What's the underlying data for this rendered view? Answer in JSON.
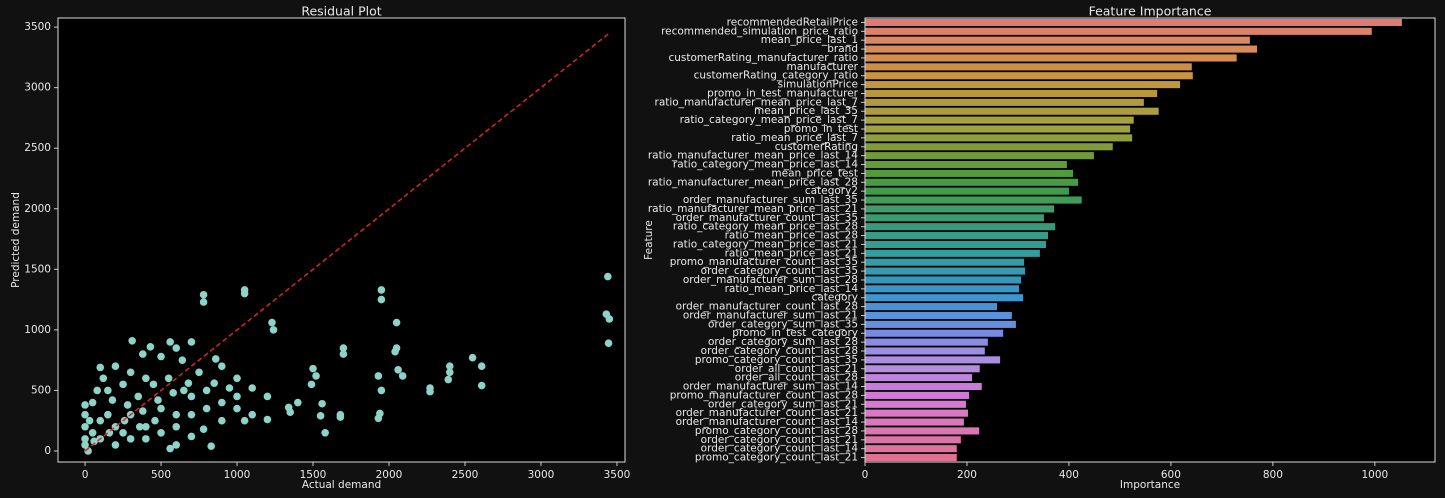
{
  "chart_data": [
    {
      "type": "scatter",
      "title": "Residual Plot",
      "x_label": "Actual demand",
      "y_label": "Predicted demand",
      "color": "#8dd3c7",
      "x": [
        3440,
        3430,
        3450,
        3445,
        1950,
        1950,
        1050,
        1050,
        780,
        780,
        2050,
        1230,
        1240,
        2050,
        2040,
        1700,
        1700,
        2550,
        2610,
        2400,
        2400,
        2390,
        2270,
        2270,
        2610,
        1930,
        1950,
        1500,
        1520,
        1490,
        1400,
        1340,
        1350,
        1560,
        1680,
        1680,
        1580,
        1550,
        1940,
        1930,
        2060,
        2090,
        1100,
        1200,
        1000,
        900,
        860,
        700,
        600,
        560,
        430,
        310,
        380,
        500,
        640,
        850,
        950,
        1050,
        1200,
        780,
        700,
        600,
        560,
        830,
        400,
        300,
        200,
        100,
        150,
        50,
        0,
        0,
        0,
        0,
        0,
        20,
        100,
        200,
        300,
        250,
        400,
        500,
        600,
        700,
        800,
        900,
        1000,
        150,
        350,
        450,
        550,
        650,
        750,
        250,
        100,
        50,
        300,
        400,
        500,
        200,
        600,
        700,
        800,
        900,
        1000,
        1100,
        120,
        80,
        30,
        180,
        280,
        380,
        480,
        580,
        680,
        460,
        360,
        260,
        160,
        60
      ],
      "values": [
        1440,
        1130,
        1090,
        890,
        1330,
        1250,
        1330,
        1300,
        1290,
        1230,
        1060,
        1060,
        1000,
        850,
        820,
        850,
        800,
        770,
        700,
        700,
        650,
        590,
        520,
        490,
        540,
        620,
        500,
        680,
        620,
        550,
        400,
        360,
        320,
        390,
        300,
        280,
        150,
        290,
        310,
        270,
        670,
        620,
        520,
        450,
        600,
        700,
        760,
        900,
        850,
        900,
        860,
        910,
        800,
        780,
        750,
        560,
        520,
        250,
        260,
        180,
        120,
        50,
        20,
        40,
        600,
        650,
        700,
        690,
        500,
        400,
        380,
        300,
        200,
        100,
        50,
        0,
        100,
        200,
        300,
        150,
        200,
        350,
        300,
        450,
        500,
        400,
        450,
        300,
        450,
        550,
        600,
        500,
        650,
        550,
        250,
        150,
        100,
        100,
        150,
        50,
        200,
        300,
        350,
        250,
        350,
        300,
        600,
        500,
        250,
        420,
        380,
        330,
        420,
        480,
        560,
        250,
        200,
        250,
        150,
        80
      ],
      "reference_line": {
        "x": [
          0,
          3450
        ],
        "values": [
          0,
          3450
        ],
        "color": "#d62728"
      },
      "xlim": [
        -178,
        3553
      ],
      "ylim": [
        -91,
        3575
      ],
      "xticks": [
        0,
        500,
        1000,
        1500,
        2000,
        2500,
        3000,
        3500
      ],
      "yticks": [
        0,
        500,
        1000,
        1500,
        2000,
        2500,
        3000,
        3500
      ]
    },
    {
      "type": "hbar",
      "title": "Feature Importance",
      "x_label": "Importance",
      "y_label": "Feature",
      "categories": [
        "recommendedRetailPrice",
        "recommended_simulation_price_ratio",
        "mean_price_last_1",
        "brand",
        "customerRating_manufacturer_ratio",
        "manufacturer",
        "customerRating_category_ratio",
        "simulationPrice",
        "promo_in_test_manufacturer",
        "ratio_manufacturer_mean_price_last_7",
        "mean_price_last_35",
        "ratio_category_mean_price_last_7",
        "promo_in_test",
        "ratio_mean_price_last_7",
        "customerRating",
        "ratio_manufacturer_mean_price_last_14",
        "ratio_category_mean_price_last_14",
        "mean_price_test",
        "ratio_manufacturer_mean_price_last_28",
        "category2",
        "order_manufacturer_sum_last_35",
        "ratio_manufacturer_mean_price_last_21",
        "order_manufacturer_count_last_35",
        "ratio_category_mean_price_last_28",
        "ratio_mean_price_last_28",
        "ratio_category_mean_price_last_21",
        "ratio_mean_price_last_21",
        "promo_manufacturer_count_last_35",
        "order_category_count_last_35",
        "order_manufacturer_sum_last_28",
        "ratio_mean_price_last_14",
        "category",
        "order_manufacturer_count_last_28",
        "order_manufacturer_sum_last_21",
        "order_category_sum_last_35",
        "promo_in_test_category",
        "order_category_sum_last_28",
        "order_category_count_last_28",
        "promo_category_count_last_35",
        "order_all_count_last_21",
        "order_all_count_last_28",
        "order_manufacturer_sum_last_14",
        "promo_manufacturer_count_last_28",
        "order_category_sum_last_21",
        "order_manufacturer_count_last_21",
        "order_manufacturer_count_last_14",
        "promo_category_count_last_28",
        "order_category_count_last_21",
        "order_category_count_last_14",
        "promo_category_count_last_21"
      ],
      "values": [
        1053,
        994,
        755,
        769,
        729,
        641,
        643,
        618,
        573,
        547,
        576,
        527,
        520,
        524,
        486,
        449,
        396,
        408,
        418,
        400,
        425,
        371,
        351,
        373,
        359,
        355,
        343,
        312,
        314,
        306,
        302,
        310,
        259,
        288,
        296,
        271,
        241,
        235,
        265,
        225,
        210,
        229,
        204,
        198,
        202,
        194,
        224,
        188,
        180,
        180
      ],
      "colors": [
        "hsl(5,62%,66%)",
        "hsl(12,62%,64%)",
        "hsl(19,62%,62%)",
        "hsl(24,62%,60%)",
        "hsl(28,62%,57%)",
        "hsl(32,58%,54%)",
        "hsl(36,55%,52%)",
        "hsl(40,52%,50%)",
        "hsl(44,50%,48%)",
        "hsl(48,48%,47%)",
        "hsl(52,46%,46%)",
        "hsl(56,45%,45%)",
        "hsl(62,44%,44%)",
        "hsl(68,44%,43%)",
        "hsl(76,44%,42%)",
        "hsl(86,44%,42%)",
        "hsl(96,44%,42%)",
        "hsl(106,44%,42%)",
        "hsl(116,42%,43%)",
        "hsl(126,42%,43%)",
        "hsl(136,42%,43%)",
        "hsl(146,42%,43%)",
        "hsl(154,44%,42%)",
        "hsl(162,46%,41%)",
        "hsl(168,48%,41%)",
        "hsl(174,50%,41%)",
        "hsl(180,50%,41%)",
        "hsl(186,52%,43%)",
        "hsl(191,54%,45%)",
        "hsl(196,56%,47%)",
        "hsl(200,58%,50%)",
        "hsl(204,60%,53%)",
        "hsl(208,62%,56%)",
        "hsl(213,64%,60%)",
        "hsl(220,66%,64%)",
        "hsl(230,66%,68%)",
        "hsl(240,62%,72%)",
        "hsl(250,60%,72%)",
        "hsl(260,58%,72%)",
        "hsl(270,56%,71%)",
        "hsl(280,56%,69%)",
        "hsl(288,56%,67%)",
        "hsl(296,54%,66%)",
        "hsl(304,54%,66%)",
        "hsl(312,54%,66%)",
        "hsl(318,56%,66%)",
        "hsl(324,58%,66%)",
        "hsl(330,60%,66%)",
        "hsl(336,62%,66%)",
        "hsl(342,64%,66%)"
      ],
      "xlim": [
        0,
        1118
      ],
      "xticks": [
        0,
        200,
        400,
        600,
        800,
        1000
      ]
    }
  ]
}
